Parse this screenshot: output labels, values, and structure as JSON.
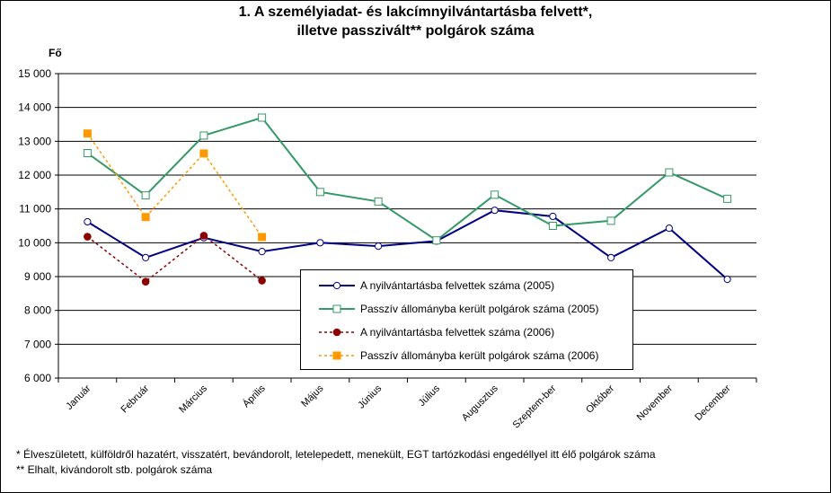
{
  "title_line1": "1. A személyiadat- és lakcímnyilvántartásba felvett*,",
  "title_line2": "illetve passzivált** polgárok száma",
  "chart_data": {
    "type": "line",
    "ylabel": "Fő",
    "ylim": [
      6000,
      15000
    ],
    "yticks": [
      6000,
      7000,
      8000,
      9000,
      10000,
      11000,
      12000,
      13000,
      14000,
      15000
    ],
    "ytick_labels": [
      "6 000",
      "7 000",
      "8 000",
      "9 000",
      "10 000",
      "11 000",
      "12 000",
      "13 000",
      "14 000",
      "15 000"
    ],
    "categories": [
      "Január",
      "Február",
      "Március",
      "Április",
      "Május",
      "Június",
      "Július",
      "Augusztus",
      "Szeptem-ber",
      "Október",
      "November",
      "December"
    ],
    "grid": true,
    "legend_position": "center-right",
    "series": [
      {
        "name": "A nyilvántartásba felvettek száma (2005)",
        "color": "#000080",
        "dash": false,
        "marker": "circle-open",
        "values": [
          10620,
          9560,
          10150,
          9740,
          10000,
          9900,
          10050,
          10960,
          10780,
          9560,
          10430,
          8920
        ]
      },
      {
        "name": "Passzív állományba került polgárok száma (2005)",
        "color": "#339966",
        "dash": false,
        "marker": "square-open",
        "values": [
          12650,
          11400,
          13170,
          13700,
          11500,
          11220,
          10070,
          11420,
          10500,
          10650,
          12080,
          11300
        ]
      },
      {
        "name": "A nyilvántartásba felvettek száma (2006)",
        "color": "#8b0000",
        "dash": true,
        "marker": "circle-filled",
        "values": [
          10180,
          8850,
          10210,
          8880,
          null,
          null,
          null,
          null,
          null,
          null,
          null,
          null
        ]
      },
      {
        "name": "Passzív állományba került polgárok száma (2006)",
        "color": "#ff9900",
        "dash": true,
        "marker": "square-filled",
        "values": [
          13230,
          10760,
          12640,
          10170,
          null,
          null,
          null,
          null,
          null,
          null,
          null,
          null
        ]
      }
    ]
  },
  "footnotes": [
    "* Élveszületett, külföldről hazatért, visszatért, bevándorolt, letelepedett, menekült, EGT tartózkodási engedéllyel itt élő  polgárok száma",
    "** Elhalt, kivándorolt stb. polgárok száma"
  ]
}
